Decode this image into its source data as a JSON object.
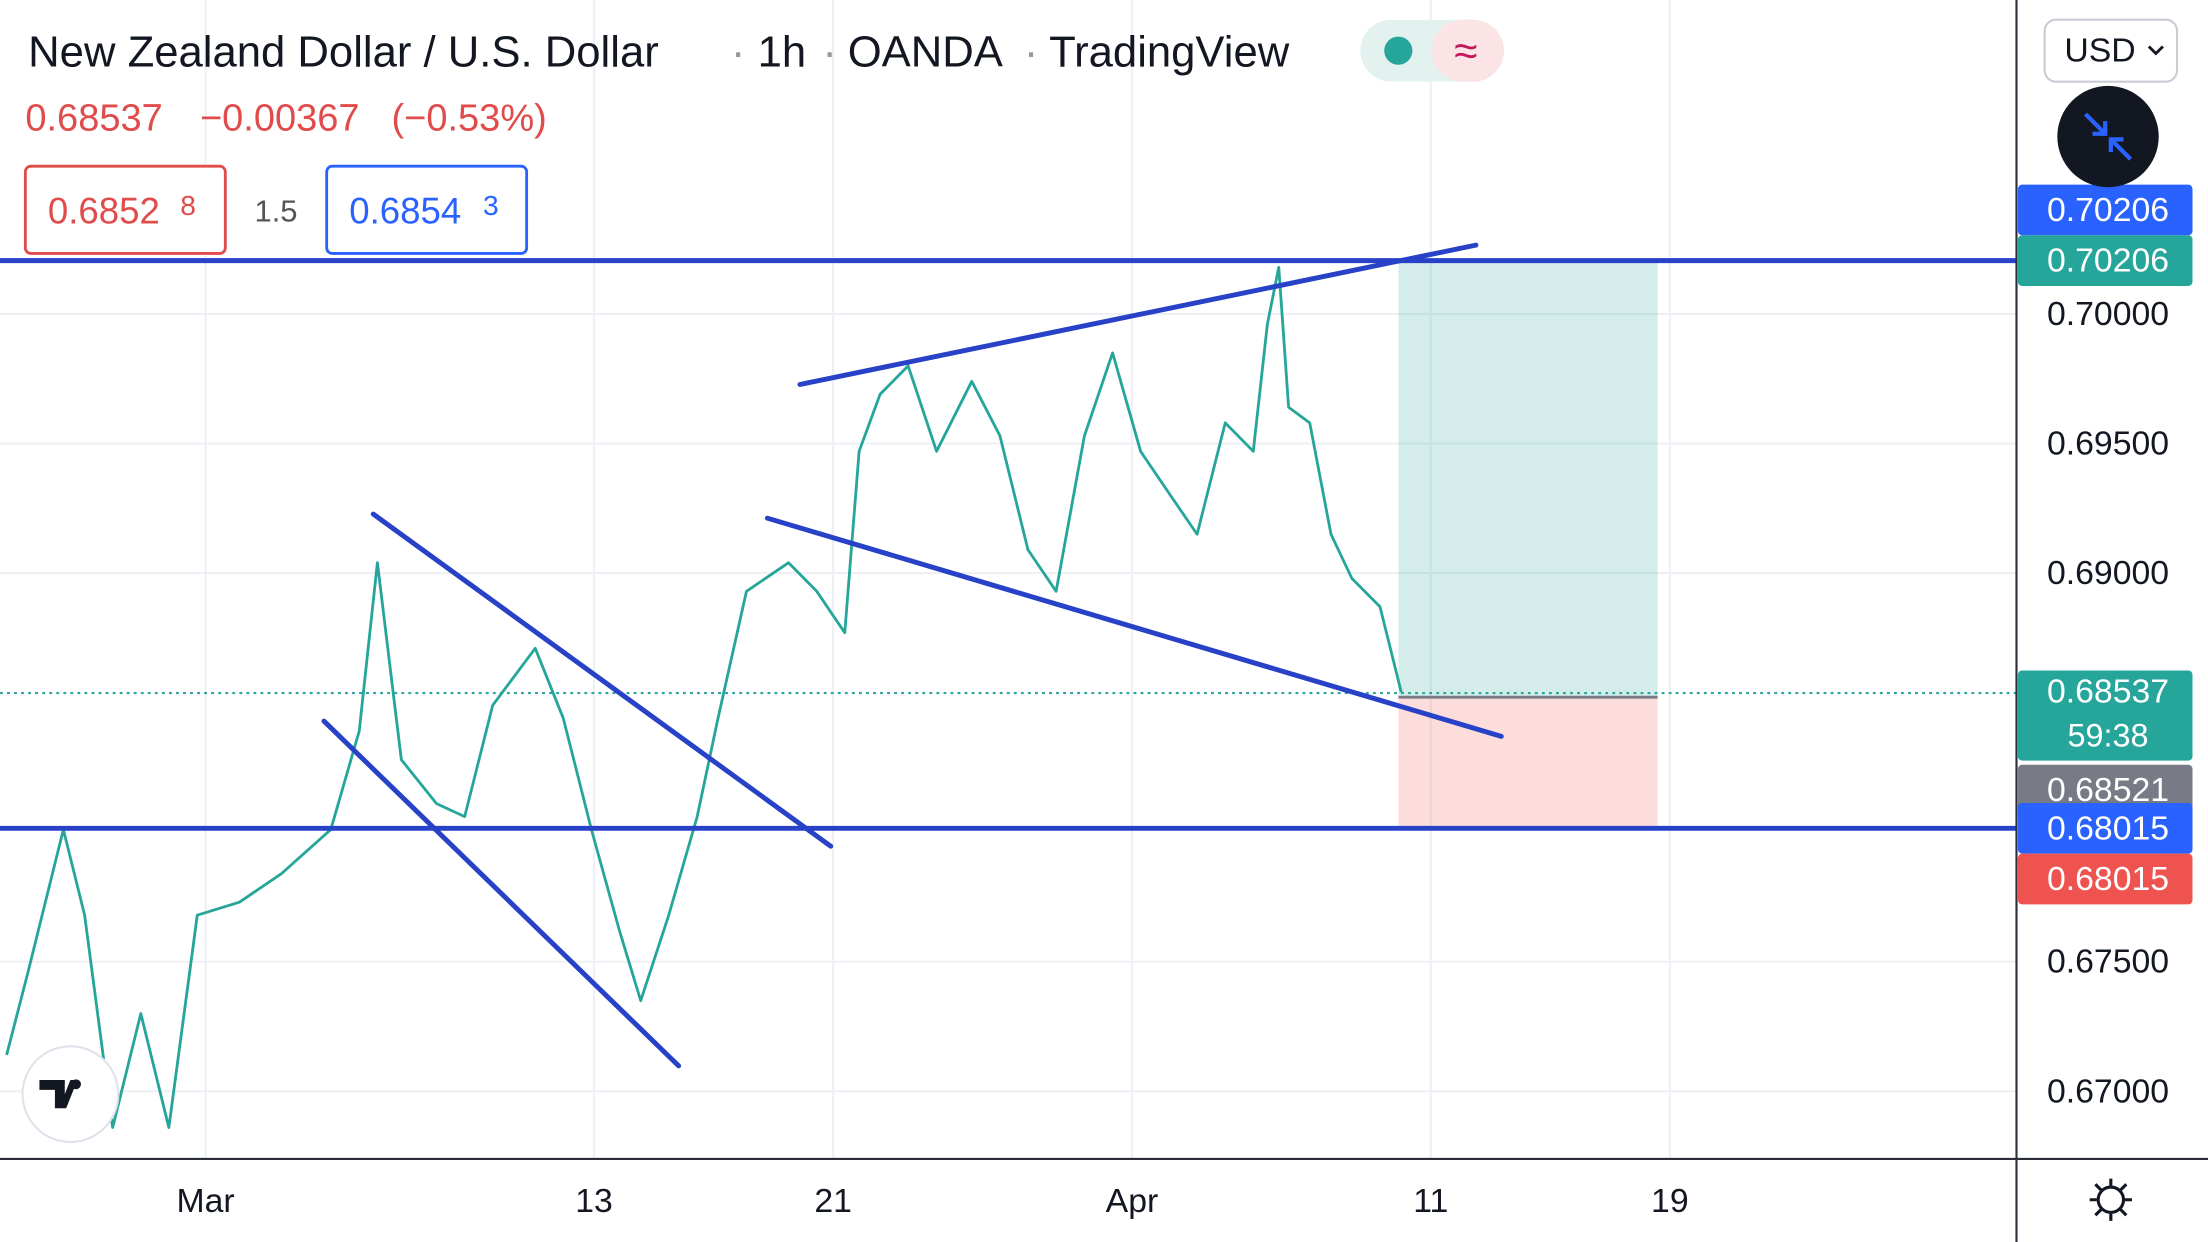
{
  "chart_data": {
    "type": "line",
    "symbol": {
      "title": "New Zealand Dollar / U.S. Dollar",
      "interval": "1h",
      "broker": "OANDA",
      "source": "TradingView"
    },
    "quote": {
      "price": "0.68537",
      "change": "−0.00367",
      "change_percent": "(−0.53%)"
    },
    "trade": {
      "sell_main": "0.6852",
      "sell_pip": "8",
      "spread": "1.5",
      "buy_main": "0.6854",
      "buy_pip": "3"
    },
    "currency": "USD",
    "xlim": [
      -6.88,
      60.6
    ],
    "ylim": [
      0.66739,
      0.71212
    ],
    "xticks": [
      {
        "value": 0,
        "label": "Mar"
      },
      13,
      21,
      {
        "value": 31,
        "label": "Apr"
      },
      {
        "value": 41,
        "label": "11"
      },
      {
        "value": 49,
        "label": "19"
      }
    ],
    "yticks": [
      {
        "value": 0.67,
        "label": "0.67000"
      },
      {
        "value": 0.675,
        "label": "0.67500"
      },
      {
        "value": 0.69,
        "label": "0.69000"
      },
      {
        "value": 0.695,
        "label": "0.69500"
      },
      {
        "value": 0.7,
        "label": "0.70000"
      }
    ],
    "grid": true,
    "x": [
      -6.66,
      -5.94,
      -4.76,
      -4.05,
      -3.11,
      -2.17,
      -1.23,
      -0.28,
      1.13,
      2.54,
      4.19,
      5.14,
      5.75,
      6.55,
      7.73,
      8.67,
      9.61,
      11.03,
      11.97,
      12.91,
      13.85,
      14.56,
      15.5,
      16.45,
      17.15,
      18.1,
      19.51,
      20.45,
      21.39,
      21.87,
      22.57,
      23.51,
      24.46,
      25.64,
      26.58,
      27.52,
      28.46,
      29.41,
      30.35,
      31.29,
      32.23,
      33.18,
      34.12,
      35.06,
      35.53,
      35.91,
      36.24,
      36.95,
      37.66,
      38.36,
      39.3,
      40.01
    ],
    "series": [
      {
        "color": "#26a69a",
        "values": [
          0.6714,
          0.6746,
          0.6801,
          0.6768,
          0.6686,
          0.673,
          0.6686,
          0.6768,
          0.6773,
          0.6784,
          0.6801,
          0.6839,
          0.6904,
          0.6828,
          0.6811,
          0.6806,
          0.6849,
          0.6871,
          0.6844,
          0.6801,
          0.6762,
          0.6735,
          0.6768,
          0.6806,
          0.6844,
          0.6893,
          0.6904,
          0.6893,
          0.6877,
          0.6947,
          0.6969,
          0.698,
          0.6947,
          0.6974,
          0.6953,
          0.6909,
          0.6893,
          0.6953,
          0.6985,
          0.6947,
          0.6931,
          0.6915,
          0.6958,
          0.6947,
          0.6996,
          0.7018,
          0.6964,
          0.6958,
          0.6915,
          0.6898,
          0.6887,
          0.6854
        ]
      }
    ],
    "trendlines": [
      {
        "x": [
          3.96,
          15.83
        ],
        "y": [
          0.68429,
          0.67098
        ]
      },
      {
        "x": [
          5.61,
          20.92
        ],
        "y": [
          0.69228,
          0.67946
        ]
      },
      {
        "x": [
          18.8,
          43.36
        ],
        "y": [
          0.69212,
          0.6837
        ]
      },
      {
        "x": [
          19.89,
          42.51
        ],
        "y": [
          0.69728,
          0.70266
        ]
      }
    ],
    "trendline_color": "#2741c7",
    "hlines": [
      {
        "value": 0.70206,
        "color": "#2741c7"
      },
      {
        "value": 0.68015,
        "color": "#2741c7"
      }
    ],
    "position": {
      "x_start": 39.92,
      "x_end": 48.59,
      "entry": 0.68521,
      "target": 0.70206,
      "stop": 0.68015,
      "target_color": "#26a69a",
      "stop_color": "#ef5350",
      "entry_color": "#787b86"
    },
    "last_price": {
      "value": 0.68537,
      "countdown": "59:38",
      "color": "#26a69a"
    }
  }
}
